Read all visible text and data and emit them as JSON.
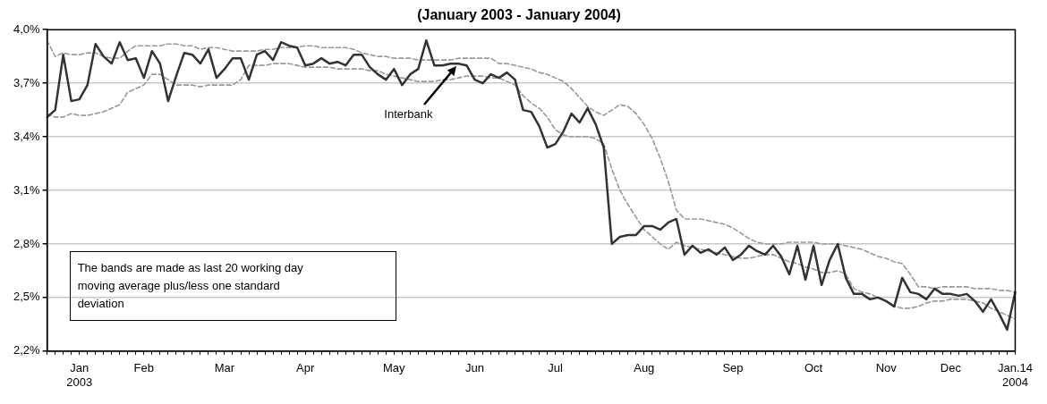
{
  "chart_data": {
    "type": "line",
    "title": "(January 2003 - January 2004)",
    "categories": [
      null,
      null,
      null,
      null,
      "Jan\n2003",
      null,
      null,
      null,
      null,
      null,
      null,
      null,
      "Feb",
      null,
      null,
      null,
      null,
      null,
      null,
      null,
      null,
      null,
      "Mar",
      null,
      null,
      null,
      null,
      null,
      null,
      null,
      null,
      null,
      "Apr",
      null,
      null,
      null,
      null,
      null,
      null,
      null,
      null,
      null,
      null,
      "May",
      null,
      null,
      null,
      null,
      null,
      null,
      null,
      null,
      null,
      "Jun",
      null,
      null,
      null,
      null,
      null,
      null,
      null,
      null,
      null,
      "Jul",
      null,
      null,
      null,
      null,
      null,
      null,
      null,
      null,
      null,
      null,
      "Aug",
      null,
      null,
      null,
      null,
      null,
      null,
      null,
      null,
      null,
      null,
      "Sep",
      null,
      null,
      null,
      null,
      null,
      null,
      null,
      null,
      null,
      "Oct",
      null,
      null,
      null,
      null,
      null,
      null,
      null,
      null,
      "Nov",
      null,
      null,
      null,
      null,
      null,
      null,
      null,
      "Dec",
      null,
      null,
      null,
      null,
      null,
      null,
      null,
      "Jan.14\n2004"
    ],
    "series": [
      {
        "name": "Interbank",
        "color": "#333333",
        "line_style": "solid",
        "values": [
          3.51,
          3.55,
          3.86,
          3.6,
          3.61,
          3.69,
          3.92,
          3.85,
          3.81,
          3.93,
          3.83,
          3.84,
          3.73,
          3.88,
          3.81,
          3.6,
          3.74,
          3.87,
          3.86,
          3.81,
          3.89,
          3.73,
          3.78,
          3.84,
          3.84,
          3.72,
          3.86,
          3.88,
          3.83,
          3.93,
          3.91,
          3.9,
          3.8,
          3.81,
          3.84,
          3.81,
          3.82,
          3.8,
          3.86,
          3.86,
          3.79,
          3.75,
          3.72,
          3.78,
          3.69,
          3.75,
          3.78,
          3.94,
          3.8,
          3.8,
          3.81,
          3.81,
          3.8,
          3.72,
          3.7,
          3.75,
          3.73,
          3.76,
          3.72,
          3.55,
          3.54,
          3.46,
          3.34,
          3.36,
          3.43,
          3.53,
          3.48,
          3.56,
          3.47,
          3.34,
          2.8,
          2.84,
          2.85,
          2.85,
          2.9,
          2.9,
          2.88,
          2.92,
          2.94,
          2.74,
          2.79,
          2.75,
          2.77,
          2.74,
          2.78,
          2.71,
          2.74,
          2.79,
          2.76,
          2.74,
          2.79,
          2.73,
          2.63,
          2.79,
          2.6,
          2.79,
          2.57,
          2.71,
          2.8,
          2.61,
          2.52,
          2.52,
          2.49,
          2.5,
          2.48,
          2.45,
          2.61,
          2.53,
          2.52,
          2.49,
          2.55,
          2.52,
          2.52,
          2.51,
          2.52,
          2.48,
          2.42,
          2.49,
          2.41,
          2.32,
          2.53
        ]
      },
      {
        "color": "#999999",
        "line_style": "dashed",
        "values": [
          3.94,
          3.85,
          3.87,
          3.86,
          3.86,
          3.87,
          3.87,
          3.85,
          3.84,
          3.84,
          3.88,
          3.91,
          3.91,
          3.91,
          3.91,
          3.92,
          3.92,
          3.91,
          3.91,
          3.89,
          3.9,
          3.9,
          3.89,
          3.88,
          3.88,
          3.88,
          3.88,
          3.89,
          3.89,
          3.9,
          3.9,
          3.9,
          3.91,
          3.91,
          3.9,
          3.9,
          3.9,
          3.9,
          3.89,
          3.87,
          3.86,
          3.85,
          3.85,
          3.84,
          3.84,
          3.84,
          3.83,
          3.83,
          3.83,
          3.83,
          3.83,
          3.84,
          3.84,
          3.84,
          3.84,
          3.84,
          3.81,
          3.81,
          3.8,
          3.79,
          3.78,
          3.76,
          3.75,
          3.73,
          3.71,
          3.67,
          3.62,
          3.57,
          3.54,
          3.52,
          3.55,
          3.58,
          3.57,
          3.53,
          3.47,
          3.39,
          3.28,
          3.15,
          2.99,
          2.94,
          2.94,
          2.94,
          2.93,
          2.92,
          2.91,
          2.89,
          2.86,
          2.83,
          2.81,
          2.8,
          2.8,
          2.8,
          2.81,
          2.81,
          2.81,
          2.81,
          2.8,
          2.8,
          2.8,
          2.79,
          2.78,
          2.77,
          2.75,
          2.73,
          2.72,
          2.7,
          2.69,
          2.63,
          2.56,
          2.56,
          2.55,
          2.56,
          2.56,
          2.56,
          2.56,
          2.55,
          2.55,
          2.55,
          2.54,
          2.54,
          2.53
        ]
      },
      {
        "color": "#999999",
        "line_style": "dashed",
        "values": [
          3.53,
          3.51,
          3.51,
          3.53,
          3.52,
          3.52,
          3.53,
          3.54,
          3.56,
          3.58,
          3.65,
          3.67,
          3.69,
          3.75,
          3.75,
          3.72,
          3.69,
          3.69,
          3.69,
          3.68,
          3.69,
          3.69,
          3.69,
          3.69,
          3.72,
          3.8,
          3.8,
          3.8,
          3.81,
          3.81,
          3.81,
          3.8,
          3.79,
          3.79,
          3.79,
          3.79,
          3.78,
          3.78,
          3.78,
          3.78,
          3.77,
          3.77,
          3.75,
          3.74,
          3.73,
          3.72,
          3.71,
          3.71,
          3.71,
          3.72,
          3.72,
          3.73,
          3.74,
          3.74,
          3.74,
          3.73,
          3.73,
          3.71,
          3.69,
          3.63,
          3.59,
          3.56,
          3.51,
          3.44,
          3.41,
          3.4,
          3.4,
          3.4,
          3.39,
          3.36,
          3.22,
          3.1,
          3.02,
          2.95,
          2.88,
          2.84,
          2.8,
          2.77,
          2.81,
          2.79,
          2.78,
          2.77,
          2.76,
          2.75,
          2.74,
          2.73,
          2.72,
          2.72,
          2.73,
          2.74,
          2.74,
          2.72,
          2.7,
          2.69,
          2.67,
          2.66,
          2.64,
          2.64,
          2.65,
          2.63,
          2.55,
          2.53,
          2.52,
          2.5,
          2.48,
          2.45,
          2.44,
          2.44,
          2.45,
          2.47,
          2.48,
          2.48,
          2.49,
          2.49,
          2.49,
          2.48,
          2.47,
          2.44,
          2.42,
          2.4,
          2.38
        ]
      }
    ],
    "ylim": [
      2.2,
      4.0
    ],
    "yticks": [
      {
        "value": 2.2,
        "label": "2,2%"
      },
      {
        "value": 2.5,
        "label": "2,5%"
      },
      {
        "value": 2.8,
        "label": "2,8%"
      },
      {
        "value": 3.1,
        "label": "3,1%"
      },
      {
        "value": 3.4,
        "label": "3,4%"
      },
      {
        "value": 3.7,
        "label": "3,7%"
      },
      {
        "value": 4.0,
        "label": "4,0%"
      }
    ],
    "grid": "y",
    "marker": "none",
    "annotations": [
      "The bands are made as last 20 working day moving average plus/less one standard deviation"
    ]
  }
}
